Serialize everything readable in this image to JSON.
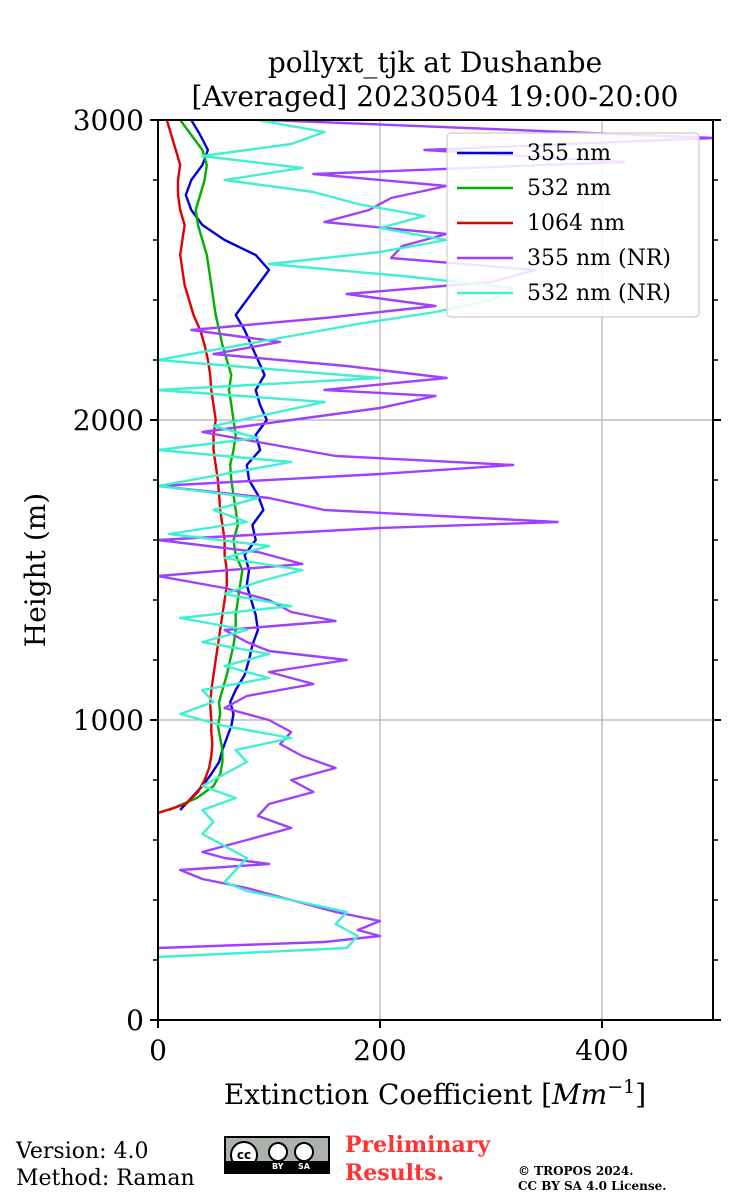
{
  "chart_data": {
    "type": "line",
    "title_line1": "pollyxt_tjk at Dushanbe",
    "title_line2": "[Averaged] 20230504 19:00-20:00",
    "xlabel_text": "Extinction Coefficient ",
    "xlabel_unit_base": "Mm",
    "xlabel_unit_exp": "−1",
    "ylabel": "Height (m)",
    "xlim": [
      0,
      500
    ],
    "ylim": [
      0,
      3000
    ],
    "xticks": [
      0,
      200,
      400
    ],
    "xtick_labels": [
      "0",
      "200",
      "400"
    ],
    "yticks": [
      0,
      1000,
      2000,
      3000
    ],
    "ytick_labels": [
      "0",
      "1000",
      "2000",
      "3000"
    ],
    "grid": true,
    "legend_position": "top-right",
    "series": [
      {
        "name": "355 nm",
        "color": "#0000e0",
        "heights": [
          700,
          740,
          780,
          820,
          860,
          900,
          940,
          980,
          1020,
          1060,
          1100,
          1150,
          1200,
          1250,
          1300,
          1350,
          1400,
          1450,
          1500,
          1550,
          1600,
          1650,
          1700,
          1750,
          1800,
          1850,
          1900,
          1950,
          2000,
          2050,
          2100,
          2150,
          2200,
          2250,
          2300,
          2350,
          2400,
          2450,
          2500,
          2550,
          2600,
          2650,
          2700,
          2750,
          2800,
          2850,
          2900,
          2950,
          3000
        ],
        "values": [
          20,
          30,
          40,
          48,
          55,
          58,
          62,
          66,
          68,
          65,
          70,
          78,
          82,
          85,
          90,
          88,
          84,
          80,
          82,
          78,
          88,
          85,
          95,
          90,
          82,
          80,
          92,
          88,
          98,
          92,
          88,
          96,
          90,
          84,
          78,
          70,
          80,
          90,
          100,
          88,
          60,
          40,
          30,
          25,
          30,
          40,
          45,
          38,
          30
        ]
      },
      {
        "name": "532 nm",
        "color": "#00b000",
        "heights": [
          700,
          740,
          780,
          820,
          860,
          900,
          940,
          980,
          1020,
          1060,
          1100,
          1150,
          1200,
          1250,
          1300,
          1350,
          1400,
          1450,
          1500,
          1550,
          1600,
          1650,
          1700,
          1750,
          1800,
          1850,
          1900,
          1950,
          2000,
          2050,
          2100,
          2150,
          2200,
          2250,
          2300,
          2350,
          2400,
          2450,
          2500,
          2550,
          2600,
          2650,
          2700,
          2750,
          2800,
          2850,
          2900,
          2950,
          3000
        ],
        "values": [
          10,
          35,
          50,
          56,
          58,
          58,
          56,
          54,
          56,
          55,
          58,
          62,
          65,
          68,
          70,
          70,
          72,
          74,
          76,
          70,
          68,
          72,
          70,
          68,
          66,
          65,
          68,
          70,
          68,
          66,
          64,
          66,
          62,
          58,
          55,
          52,
          50,
          48,
          46,
          44,
          40,
          36,
          34,
          38,
          42,
          44,
          40,
          30,
          20
        ]
      },
      {
        "name": "1064 nm",
        "color": "#e00000",
        "heights": [
          690,
          720,
          760,
          800,
          840,
          880,
          920,
          960,
          1000,
          1050,
          1100,
          1150,
          1200,
          1250,
          1300,
          1350,
          1400,
          1450,
          1500,
          1550,
          1600,
          1650,
          1700,
          1750,
          1800,
          1850,
          1900,
          1950,
          2000,
          2050,
          2100,
          2150,
          2200,
          2250,
          2300,
          2350,
          2400,
          2450,
          2500,
          2550,
          2600,
          2650,
          2700,
          2750,
          2800,
          2850,
          2900,
          2950,
          3000
        ],
        "values": [
          0,
          25,
          36,
          42,
          46,
          48,
          49,
          48,
          48,
          47,
          48,
          50,
          52,
          54,
          56,
          58,
          60,
          62,
          62,
          60,
          60,
          58,
          56,
          55,
          54,
          52,
          50,
          50,
          52,
          50,
          48,
          47,
          45,
          42,
          38,
          32,
          28,
          24,
          22,
          20,
          22,
          24,
          20,
          18,
          18,
          20,
          16,
          12,
          8
        ]
      },
      {
        "name": "355 nm (NR)",
        "color": "#a040ff",
        "heights": [
          240,
          260,
          280,
          300,
          330,
          360,
          400,
          440,
          470,
          500,
          520,
          540,
          560,
          600,
          640,
          680,
          720,
          760,
          800,
          840,
          880,
          920,
          960,
          1000,
          1040,
          1080,
          1120,
          1160,
          1200,
          1230,
          1260,
          1300,
          1330,
          1360,
          1400,
          1440,
          1480,
          1520,
          1560,
          1600,
          1640,
          1660,
          1700,
          1740,
          1780,
          1820,
          1850,
          1880,
          1920,
          1960,
          2000,
          2040,
          2080,
          2100,
          2140,
          2180,
          2220,
          2260,
          2300,
          2340,
          2380,
          2420,
          2460,
          2500,
          2540,
          2580,
          2620,
          2660,
          2700,
          2740,
          2780,
          2820,
          2860,
          2900,
          2940,
          2970,
          3000
        ],
        "values": [
          0,
          150,
          200,
          180,
          200,
          160,
          120,
          80,
          40,
          20,
          100,
          60,
          40,
          80,
          120,
          90,
          100,
          140,
          120,
          160,
          130,
          110,
          120,
          100,
          60,
          80,
          140,
          100,
          170,
          100,
          80,
          60,
          160,
          120,
          100,
          60,
          0,
          130,
          90,
          0,
          200,
          360,
          150,
          100,
          0,
          200,
          320,
          160,
          100,
          40,
          120,
          200,
          250,
          150,
          260,
          170,
          50,
          110,
          30,
          150,
          250,
          170,
          300,
          340,
          210,
          220,
          260,
          150,
          190,
          210,
          260,
          140,
          420,
          240,
          500,
          300,
          100
        ]
      },
      {
        "name": "532 nm (NR)",
        "color": "#40f0d0",
        "heights": [
          210,
          240,
          280,
          320,
          360,
          400,
          430,
          460,
          500,
          540,
          580,
          620,
          660,
          700,
          740,
          780,
          820,
          860,
          900,
          940,
          980,
          1020,
          1060,
          1100,
          1140,
          1180,
          1220,
          1260,
          1300,
          1340,
          1380,
          1420,
          1460,
          1500,
          1540,
          1580,
          1620,
          1660,
          1700,
          1740,
          1780,
          1820,
          1860,
          1900,
          1940,
          1980,
          2020,
          2060,
          2100,
          2140,
          2200,
          2260,
          2320,
          2360,
          2400,
          2440,
          2480,
          2520,
          2560,
          2600,
          2640,
          2680,
          2720,
          2760,
          2800,
          2840,
          2880,
          2920,
          2960,
          3000
        ],
        "values": [
          0,
          170,
          180,
          160,
          170,
          120,
          80,
          60,
          70,
          80,
          60,
          40,
          50,
          40,
          70,
          40,
          60,
          80,
          70,
          120,
          60,
          20,
          50,
          40,
          100,
          60,
          100,
          40,
          80,
          20,
          120,
          60,
          90,
          130,
          60,
          100,
          10,
          80,
          50,
          90,
          0,
          60,
          120,
          0,
          90,
          50,
          100,
          150,
          0,
          200,
          0,
          90,
          180,
          250,
          300,
          320,
          220,
          100,
          200,
          260,
          200,
          240,
          180,
          140,
          60,
          130,
          40,
          120,
          150,
          90
        ]
      }
    ]
  },
  "footer": {
    "version": "Version: 4.0",
    "method": "Method: Raman",
    "preliminary_line1": "Preliminary",
    "preliminary_line2": "Results.",
    "copyright_line1": "© TROPOS 2024.",
    "copyright_line2": "CC BY SA 4.0 License.",
    "license_badge_by": "BY",
    "license_badge_sa": "SA",
    "license_badge_cc": "cc"
  }
}
